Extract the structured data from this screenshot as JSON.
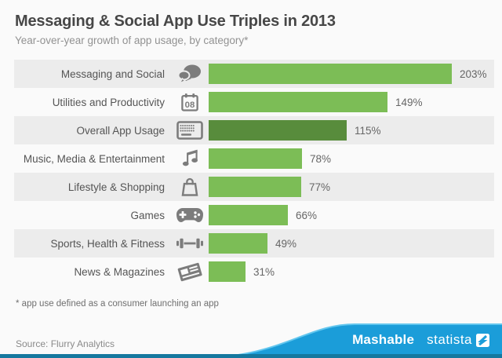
{
  "header": {
    "title": "Messaging & Social App Use Triples in 2013",
    "subtitle": "Year-over-year growth of app usage, by category*"
  },
  "chart_data": {
    "type": "bar",
    "orientation": "horizontal",
    "title": "Messaging & Social App Use Triples in 2013",
    "subtitle": "Year-over-year growth of app usage, by category*",
    "unit": "%",
    "xlim": [
      0,
      203
    ],
    "grid": false,
    "legend": "none",
    "categories": [
      "Messaging and Social",
      "Utilities and Productivity",
      "Overall App Usage",
      "Music, Media & Entertainment",
      "Lifestyle & Shopping",
      "Games",
      "Sports, Health & Fitness",
      "News & Magazines"
    ],
    "values": [
      203,
      149,
      115,
      78,
      77,
      66,
      49,
      31
    ],
    "value_labels": [
      "203%",
      "149%",
      "115%",
      "78%",
      "77%",
      "66%",
      "49%",
      "31%"
    ],
    "icons": [
      "chat-bubbles",
      "calendar-08",
      "keyboard",
      "music-note",
      "shopping-bag",
      "game-controller",
      "dumbbell",
      "newspaper"
    ],
    "highlight_index": 2
  },
  "footnote": "* app use defined as a consumer launching an app",
  "footer": {
    "source": "Source: Flurry Analytics",
    "brand_mashable": "Mashable",
    "brand_statista": "statista"
  },
  "colors": {
    "bar_green": "#7cbd56",
    "bar_dark_green": "#588c3c",
    "row_gray": "#ececec",
    "page_background": "#fafafa",
    "icon_gray": "#7c7c7c",
    "footer_blue": "#1b9dd9",
    "footer_blue_dark": "#15789f",
    "footer_blue_highlight": "#62c6ee"
  }
}
